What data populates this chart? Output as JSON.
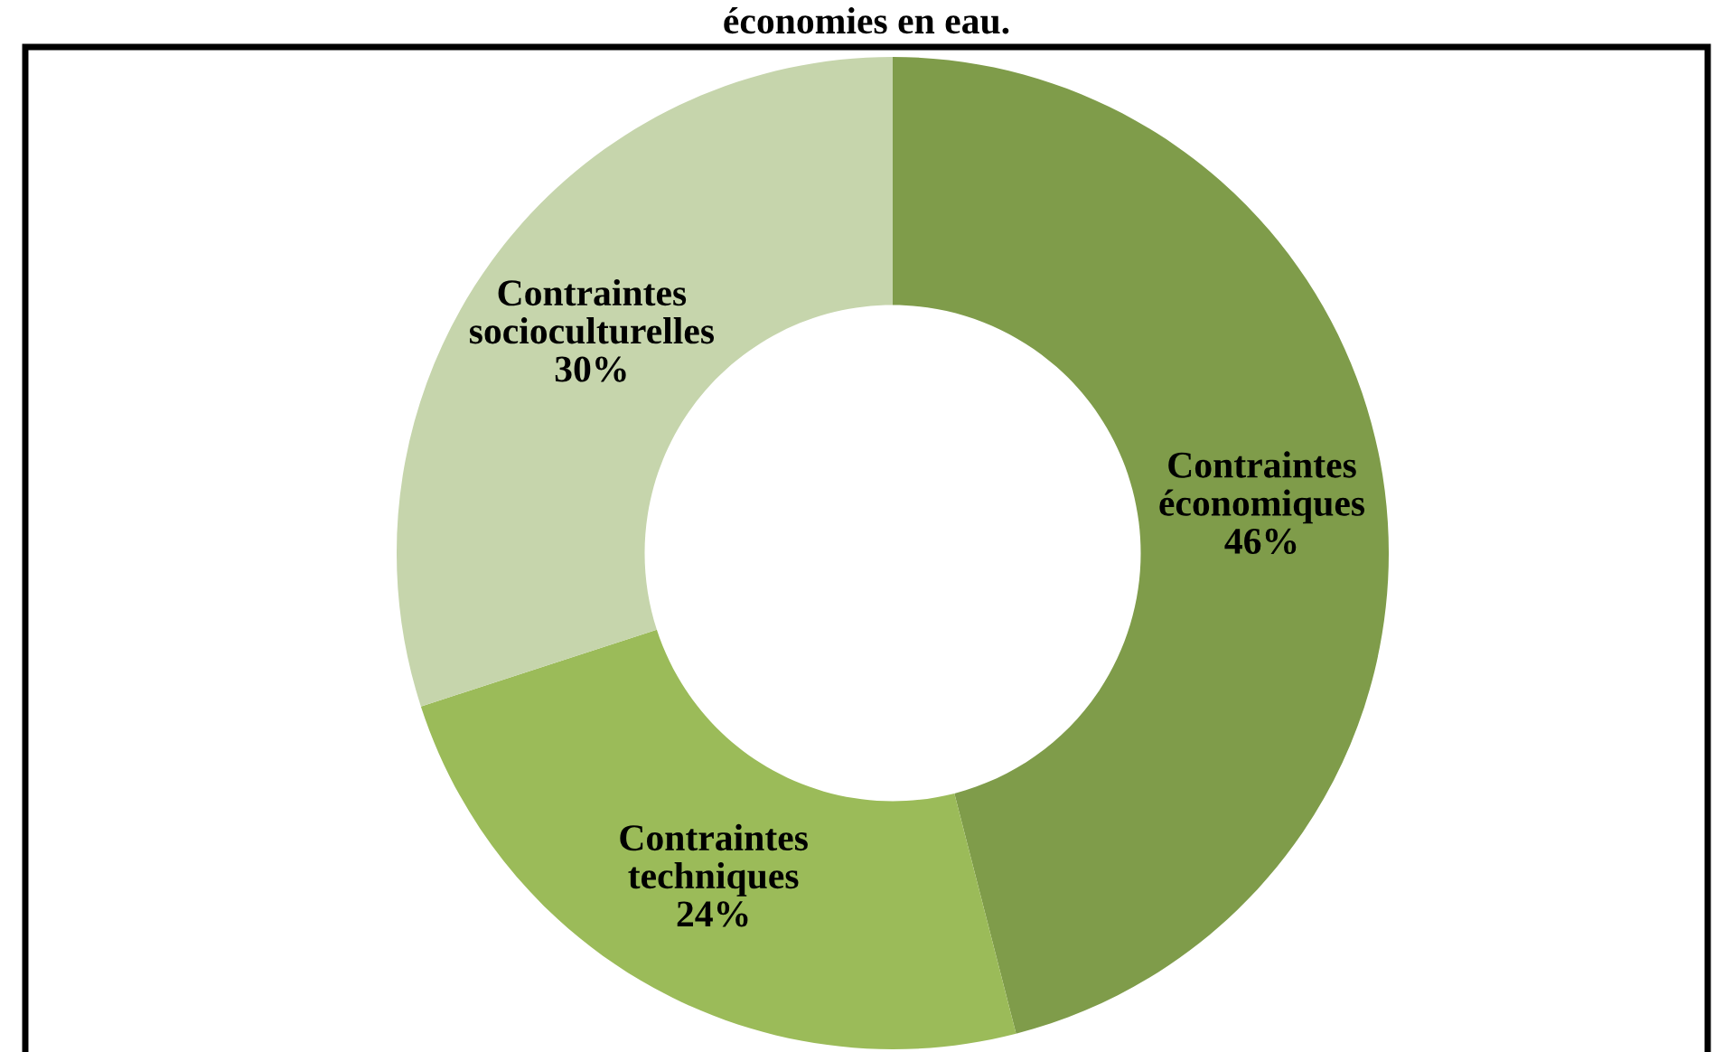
{
  "chart_data": {
    "type": "donut",
    "title": "économies en eau.",
    "categories": [
      "Contraintes\néconomiques",
      "Contraintes\ntechniques",
      "Contraintes\nsocioculturelles"
    ],
    "values": [
      46,
      24,
      30
    ],
    "colors": [
      "#7f9c4a",
      "#9bbb59",
      "#c6d5ac"
    ],
    "value_labels": [
      "46%",
      "24%",
      "30%"
    ]
  }
}
